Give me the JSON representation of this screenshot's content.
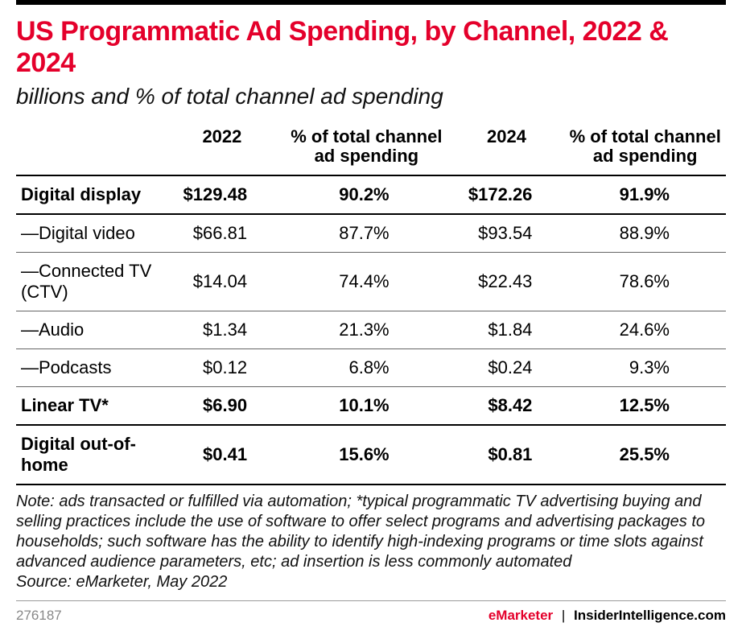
{
  "colors": {
    "accent": "#e4002b",
    "text": "#111111",
    "rule_heavy": "#000000",
    "rule_light": "#666666",
    "muted": "#888888",
    "background": "#ffffff"
  },
  "typography": {
    "title_fontsize": 34,
    "title_weight": 800,
    "subtitle_fontsize": 28,
    "subtitle_style": "italic",
    "table_fontsize": 22,
    "note_fontsize": 20,
    "footer_fontsize": 17,
    "font_family": "Arial, Helvetica, sans-serif"
  },
  "title": "US Programmatic Ad Spending, by Channel, 2022 & 2024",
  "subtitle": "billions and % of total channel ad spending",
  "table": {
    "type": "table",
    "columns": [
      "",
      "2022",
      "% of total channel ad spending",
      "2024",
      "% of total channel ad spending"
    ],
    "column_alignment": [
      "left",
      "right",
      "right",
      "right",
      "right"
    ],
    "rows": [
      {
        "bold": true,
        "cells": [
          "Digital display",
          "$129.48",
          "90.2%",
          "$172.26",
          "91.9%"
        ]
      },
      {
        "bold": false,
        "cells": [
          "—Digital video",
          "$66.81",
          "87.7%",
          "$93.54",
          "88.9%"
        ]
      },
      {
        "bold": false,
        "cells": [
          "—Connected TV (CTV)",
          "$14.04",
          "74.4%",
          "$22.43",
          "78.6%"
        ]
      },
      {
        "bold": false,
        "cells": [
          "—Audio",
          "$1.34",
          "21.3%",
          "$1.84",
          "24.6%"
        ]
      },
      {
        "bold": false,
        "cells": [
          "—Podcasts",
          "$0.12",
          "6.8%",
          "$0.24",
          "9.3%"
        ]
      },
      {
        "bold": true,
        "cells": [
          "Linear TV*",
          "$6.90",
          "10.1%",
          "$8.42",
          "12.5%"
        ]
      },
      {
        "bold": true,
        "cells": [
          "Digital out-of-home",
          "$0.41",
          "15.6%",
          "$0.81",
          "25.5%"
        ]
      }
    ]
  },
  "note": "Note: ads transacted or fulfilled via automation; *typical programmatic TV advertising buying and selling practices include the use of software to offer select programs and advertising packages to households; such software has the ability to identify high-indexing programs or time slots against advanced audience parameters, etc; ad insertion is less commonly automated",
  "source": "Source: eMarketer, May 2022",
  "footer": {
    "id": "276187",
    "brand_left": "eMarketer",
    "brand_right": "InsiderIntelligence.com"
  }
}
